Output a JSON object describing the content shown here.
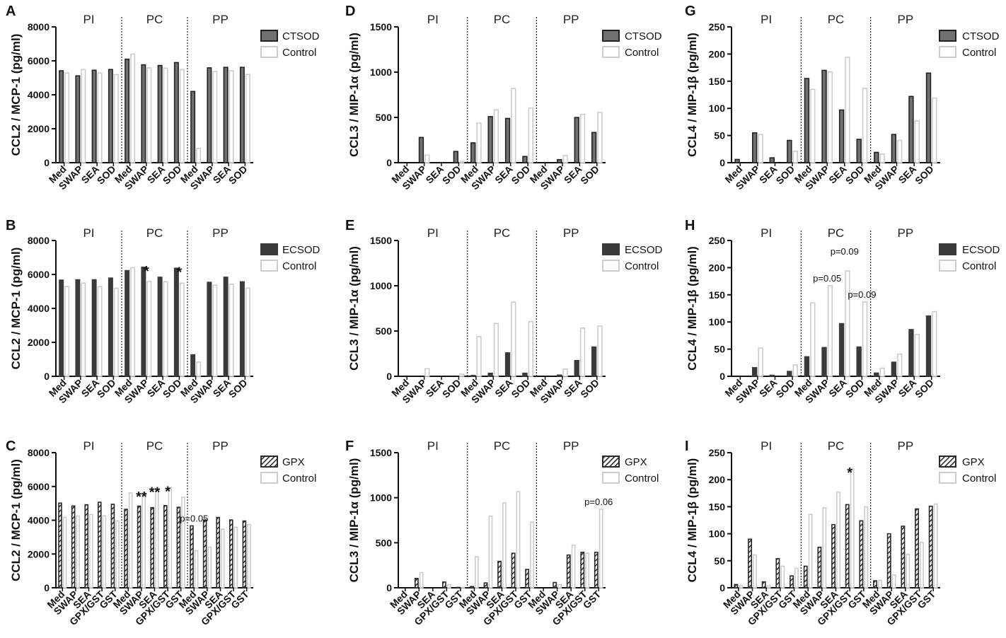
{
  "figure": {
    "groups": [
      "PI",
      "PC",
      "PP"
    ],
    "control_color": "#cccccc",
    "bar_colors": {
      "CTSOD": "#707070",
      "ECSOD": "#3a3a3a",
      "GPX": "#3a3a3a"
    }
  },
  "chart_data": [
    {
      "id": "A",
      "panel_label": "A",
      "type": "bar",
      "ylabel": "CCL2 / MCP-1 (pg/ml)",
      "ylim": [
        0,
        8000
      ],
      "yticks": [
        "0",
        "2000",
        "4000",
        "6000",
        "8000"
      ],
      "categories": [
        "Med",
        "SWAP",
        "SEA",
        "SOD",
        "Med",
        "SWAP",
        "SEA",
        "SOD",
        "Med",
        "SWAP",
        "SEA",
        "SOD"
      ],
      "series": [
        {
          "name": "CTSOD",
          "style": "gray",
          "values": [
            5450,
            5150,
            5480,
            5520,
            6130,
            5800,
            5760,
            5930,
            4230,
            5620,
            5650,
            5650
          ]
        },
        {
          "name": "Control",
          "style": "control",
          "values": [
            5320,
            5520,
            5320,
            5220,
            6430,
            5620,
            5600,
            5520,
            870,
            5400,
            5450,
            5230
          ]
        }
      ],
      "annotations": []
    },
    {
      "id": "B",
      "panel_label": "B",
      "type": "bar",
      "ylabel": "CCL2 / MCP-1 (pg/ml)",
      "ylim": [
        0,
        8000
      ],
      "yticks": [
        "0",
        "2000",
        "4000",
        "6000",
        "8000"
      ],
      "categories": [
        "Med",
        "SWAP",
        "SEA",
        "SOD",
        "Med",
        "SWAP",
        "SEA",
        "SOD",
        "Med",
        "SWAP",
        "SEA",
        "SOD"
      ],
      "series": [
        {
          "name": "ECSOD",
          "style": "dark",
          "values": [
            5700,
            5720,
            5720,
            5820,
            6260,
            6460,
            5870,
            6400,
            1300,
            5570,
            5870,
            5600
          ]
        },
        {
          "name": "Control",
          "style": "control",
          "values": [
            5320,
            5520,
            5320,
            5220,
            6430,
            5620,
            5600,
            5520,
            870,
            5400,
            5450,
            5230
          ]
        }
      ],
      "annotations": [
        {
          "index": 5,
          "text": "*"
        },
        {
          "index": 7,
          "text": "*"
        }
      ]
    },
    {
      "id": "C",
      "panel_label": "C",
      "type": "bar",
      "ylabel": "CCL2 / MCP-1 (pg/ml)",
      "ylim": [
        0,
        8000
      ],
      "yticks": [
        "0",
        "2000",
        "4000",
        "6000",
        "8000"
      ],
      "categories": [
        "Med",
        "SWAP",
        "SEA",
        "GPX/GST",
        "GST",
        "Med",
        "SWAP",
        "SEA",
        "GPX/GST",
        "GST",
        "Med",
        "SWAP",
        "SEA",
        "GPX/GST",
        "GST"
      ],
      "series": [
        {
          "name": "GPX",
          "style": "hatch",
          "values": [
            5050,
            4880,
            4950,
            5100,
            4980,
            4680,
            4870,
            4780,
            4900,
            4800,
            3700,
            4050,
            4200,
            4050,
            3990
          ]
        },
        {
          "name": "Control",
          "style": "control",
          "values": [
            4200,
            4280,
            4380,
            4300,
            4000,
            5650,
            5650,
            5920,
            5970,
            5400,
            2230,
            2440,
            3500,
            3620,
            3780
          ]
        }
      ],
      "annotations": [
        {
          "index": 6,
          "text": "**"
        },
        {
          "index": 7,
          "text": "**"
        },
        {
          "index": 8,
          "text": "*"
        },
        {
          "index": 10,
          "text": "p=0.05"
        }
      ]
    },
    {
      "id": "D",
      "panel_label": "D",
      "type": "bar",
      "ylabel": "CCL3 / MIP-1α (pg/ml)",
      "ylim": [
        0,
        1500
      ],
      "yticks": [
        "0",
        "500",
        "1000",
        "1500"
      ],
      "categories": [
        "Med",
        "SWAP",
        "SEA",
        "SOD",
        "Med",
        "SWAP",
        "SEA",
        "SOD",
        "Med",
        "SWAP",
        "SEA",
        "SOD"
      ],
      "series": [
        {
          "name": "CTSOD",
          "style": "gray",
          "values": [
            0,
            285,
            0,
            130,
            225,
            515,
            495,
            75,
            0,
            40,
            505,
            340
          ]
        },
        {
          "name": "Control",
          "style": "control",
          "values": [
            0,
            90,
            0,
            20,
            445,
            590,
            825,
            610,
            0,
            85,
            540,
            560
          ]
        }
      ],
      "annotations": []
    },
    {
      "id": "E",
      "panel_label": "E",
      "type": "bar",
      "ylabel": "CCL3 / MIP-1α (pg/ml)",
      "ylim": [
        0,
        1500
      ],
      "yticks": [
        "0",
        "500",
        "1000",
        "1500"
      ],
      "categories": [
        "Med",
        "SWAP",
        "SEA",
        "SOD",
        "Med",
        "SWAP",
        "SEA",
        "SOD",
        "Med",
        "SWAP",
        "SEA",
        "SOD"
      ],
      "series": [
        {
          "name": "ECSOD",
          "style": "dark",
          "values": [
            0,
            0,
            0,
            5,
            15,
            40,
            265,
            40,
            0,
            20,
            180,
            330
          ]
        },
        {
          "name": "Control",
          "style": "control",
          "values": [
            0,
            90,
            0,
            30,
            445,
            590,
            825,
            610,
            0,
            85,
            540,
            560
          ]
        }
      ],
      "annotations": []
    },
    {
      "id": "F",
      "panel_label": "F",
      "type": "bar",
      "ylabel": "CCL3 / MIP-1α (pg/ml)",
      "ylim": [
        0,
        1500
      ],
      "yticks": [
        "0",
        "500",
        "1000",
        "1500"
      ],
      "categories": [
        "Med",
        "SWAP",
        "SEA",
        "GPX/GST",
        "GST",
        "Med",
        "SWAP",
        "SEA",
        "GPX/GST",
        "GST",
        "Med",
        "SWAP",
        "SEA",
        "GPX/GST",
        "GST"
      ],
      "series": [
        {
          "name": "GPX",
          "style": "hatch",
          "values": [
            0,
            110,
            0,
            70,
            10,
            20,
            60,
            300,
            390,
            210,
            0,
            65,
            370,
            400,
            400
          ]
        },
        {
          "name": "Control",
          "style": "control",
          "values": [
            0,
            175,
            0,
            40,
            10,
            350,
            800,
            950,
            1075,
            735,
            0,
            40,
            480,
            390,
            880
          ]
        }
      ],
      "annotations": [
        {
          "index": 14,
          "text": "p=0.06"
        }
      ]
    },
    {
      "id": "G",
      "panel_label": "G",
      "type": "bar",
      "ylabel": "CCL4 / MIP-1β (pg/ml)",
      "ylim": [
        0,
        250
      ],
      "yticks": [
        "0",
        "50",
        "100",
        "150",
        "200",
        "250"
      ],
      "categories": [
        "Med",
        "SWAP",
        "SEA",
        "SOD",
        "Med",
        "SWAP",
        "SEA",
        "SOD",
        "Med",
        "SWAP",
        "SEA",
        "SOD"
      ],
      "series": [
        {
          "name": "CTSOD",
          "style": "gray",
          "values": [
            7,
            56,
            10,
            42,
            156,
            171,
            98,
            44,
            20,
            53,
            123,
            166
          ]
        },
        {
          "name": "Control",
          "style": "control",
          "values": [
            0,
            53,
            0,
            22,
            136,
            168,
            195,
            138,
            17,
            42,
            78,
            120
          ]
        }
      ],
      "annotations": []
    },
    {
      "id": "H",
      "panel_label": "H",
      "type": "bar",
      "ylabel": "CCL4 / MIP-1β (pg/ml)",
      "ylim": [
        0,
        250
      ],
      "yticks": [
        "0",
        "50",
        "100",
        "150",
        "200",
        "250"
      ],
      "categories": [
        "Med",
        "SWAP",
        "SEA",
        "SOD",
        "Med",
        "SWAP",
        "SEA",
        "SOD",
        "Med",
        "SWAP",
        "SEA",
        "SOD"
      ],
      "series": [
        {
          "name": "ECSOD",
          "style": "dark",
          "values": [
            0,
            17,
            3,
            10,
            37,
            54,
            98,
            55,
            7,
            27,
            87,
            112
          ]
        },
        {
          "name": "Control",
          "style": "control",
          "values": [
            0,
            53,
            0,
            22,
            136,
            168,
            195,
            138,
            16,
            42,
            78,
            120
          ]
        }
      ],
      "annotations": [
        {
          "index": 5,
          "text": "p=0.05"
        },
        {
          "index": 6,
          "text": "p=0.09"
        },
        {
          "index": 7,
          "text": "p=0.09"
        }
      ]
    },
    {
      "id": "I",
      "panel_label": "I",
      "type": "bar",
      "ylabel": "CCL4 / MIP-1β (pg/ml)",
      "ylim": [
        0,
        250
      ],
      "yticks": [
        "0",
        "50",
        "100",
        "150",
        "200",
        "250"
      ],
      "categories": [
        "Med",
        "SWAP",
        "SEA",
        "GPX/GST",
        "GST",
        "Med",
        "SWAP",
        "SEA",
        "GPX/GST",
        "GST",
        "Med",
        "SWAP",
        "SEA",
        "GPX/GST",
        "GST"
      ],
      "series": [
        {
          "name": "GPX",
          "style": "hatch",
          "values": [
            7,
            91,
            12,
            55,
            23,
            41,
            76,
            118,
            155,
            125,
            14,
            101,
            115,
            147,
            152
          ]
        },
        {
          "name": "Control",
          "style": "control",
          "values": [
            5,
            62,
            5,
            41,
            37,
            137,
            149,
            178,
            221,
            151,
            15,
            25,
            63,
            85,
            156
          ]
        }
      ],
      "annotations": [
        {
          "index": 8,
          "text": "*"
        }
      ]
    }
  ]
}
